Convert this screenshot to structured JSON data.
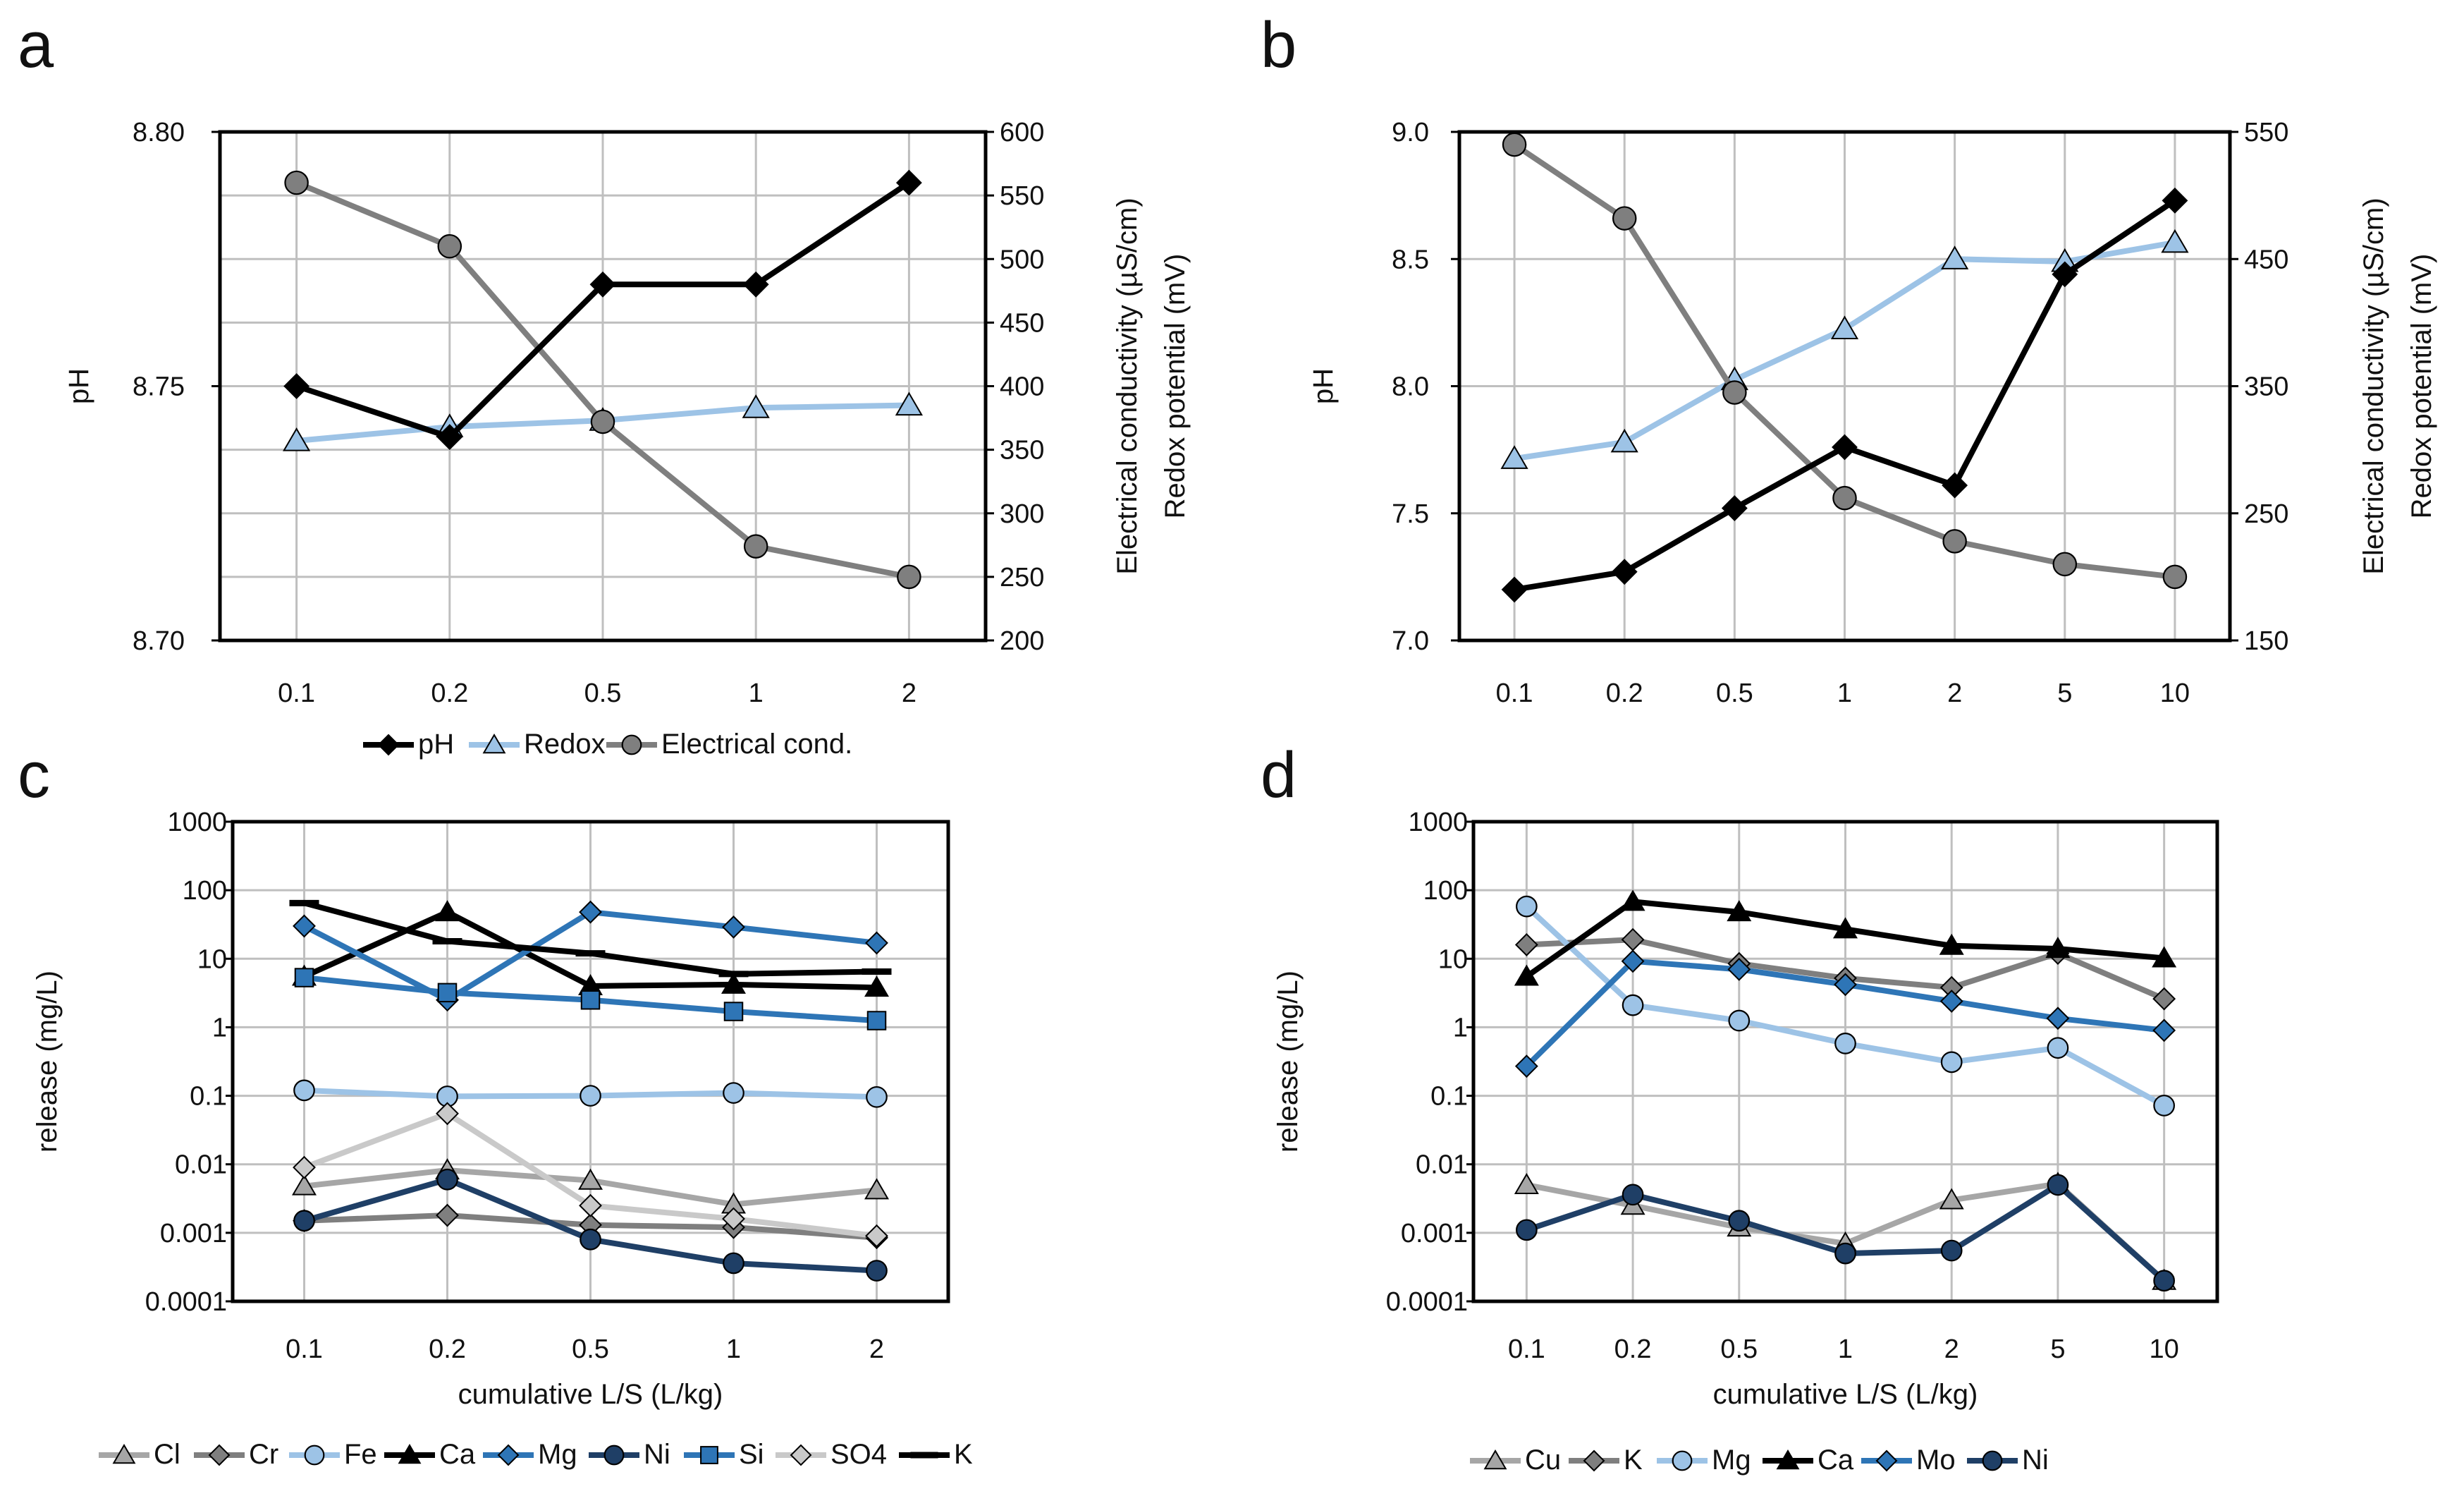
{
  "figure": {
    "panel_labels": [
      "a",
      "b",
      "c",
      "d"
    ]
  },
  "chart_data": [
    {
      "id": "a",
      "type": "line",
      "categories": [
        "0.1",
        "0.2",
        "0.5",
        "1",
        "2"
      ],
      "y_left": {
        "label": "pH",
        "range": [
          8.7,
          8.8
        ],
        "ticks": [
          "8.70",
          "8.75",
          "8.80"
        ]
      },
      "y_right": {
        "label_line1": "Electrical conductivity (µS/cm)",
        "label_line2": "Redox potential (mV)",
        "range": [
          200,
          600
        ],
        "ticks": [
          "200",
          "250",
          "300",
          "350",
          "400",
          "450",
          "500",
          "550",
          "600"
        ]
      },
      "xlabel": "",
      "series": [
        {
          "name": "pH",
          "axis": "left",
          "marker": "diamond",
          "color": "#000000",
          "values": [
            8.75,
            8.74,
            8.77,
            8.77,
            8.79
          ]
        },
        {
          "name": "Redox",
          "axis": "right",
          "marker": "triangle",
          "color": "#9dc3e6",
          "values": [
            357,
            368,
            373,
            383,
            385
          ]
        },
        {
          "name": "Electrical cond.",
          "axis": "right",
          "marker": "circle",
          "color": "#7f7f7f",
          "values": [
            560,
            510,
            372,
            274,
            250
          ]
        }
      ],
      "legend": [
        "pH",
        "Redox",
        "Electrical cond."
      ]
    },
    {
      "id": "b",
      "type": "line",
      "categories": [
        "0.1",
        "0.2",
        "0.5",
        "1",
        "2",
        "5",
        "10"
      ],
      "y_left": {
        "label": "pH",
        "range": [
          7.0,
          9.0
        ],
        "ticks": [
          "7.0",
          "7.5",
          "8.0",
          "8.5",
          "9.0"
        ]
      },
      "y_right": {
        "label_line1": "Electrical conductivity (µS/cm)",
        "label_line2": "Redox potential (mV)",
        "range": [
          150,
          550
        ],
        "ticks": [
          "150",
          "250",
          "350",
          "450",
          "550"
        ]
      },
      "xlabel": "",
      "series": [
        {
          "name": "pH",
          "axis": "left",
          "marker": "diamond",
          "color": "#000000",
          "values": [
            7.2,
            7.27,
            7.52,
            7.76,
            7.61,
            8.44,
            8.73
          ]
        },
        {
          "name": "Redox",
          "axis": "right",
          "marker": "triangle",
          "color": "#9dc3e6",
          "values": [
            293,
            306,
            355,
            395,
            450,
            448,
            463
          ]
        },
        {
          "name": "Electrical cond.",
          "axis": "right",
          "marker": "circle",
          "color": "#7f7f7f",
          "values": [
            540,
            482,
            345,
            262,
            228,
            210,
            200
          ]
        }
      ]
    },
    {
      "id": "c",
      "type": "line",
      "scale": "log",
      "categories": [
        "0.1",
        "0.2",
        "0.5",
        "1",
        "2"
      ],
      "ylabel": "release (mg/L)",
      "xlabel": "cumulative L/S (L/kg)",
      "ylim": [
        0.0001,
        1000
      ],
      "yticks": [
        "0.0001",
        "0.001",
        "0.01",
        "0.1",
        "1",
        "10",
        "100",
        "1000"
      ],
      "series": [
        {
          "name": "Cl",
          "marker": "triangle",
          "color": "#a6a6a6",
          "values": [
            0.0048,
            0.0082,
            0.0058,
            0.0026,
            0.0042
          ]
        },
        {
          "name": "Cr",
          "marker": "diamond",
          "color": "#7f7f7f",
          "values": [
            0.0015,
            0.0018,
            0.0013,
            0.0012,
            0.00085
          ]
        },
        {
          "name": "Fe",
          "marker": "circle",
          "color": "#9dc3e6",
          "values": [
            0.12,
            0.098,
            0.1,
            0.11,
            0.096
          ]
        },
        {
          "name": "Ca",
          "marker": "triangle",
          "color": "#000000",
          "values": [
            5.5,
            48,
            4.0,
            4.2,
            3.8
          ]
        },
        {
          "name": "Mg",
          "marker": "diamond",
          "color": "#2e75b6",
          "values": [
            30,
            2.5,
            48,
            29,
            17
          ]
        },
        {
          "name": "Ni",
          "marker": "circle",
          "color": "#1f3f66",
          "values": [
            0.0015,
            0.006,
            0.0008,
            0.00036,
            0.00028
          ]
        },
        {
          "name": "Si",
          "marker": "square",
          "color": "#2e75b6",
          "values": [
            5.3,
            3.2,
            2.5,
            1.7,
            1.25
          ]
        },
        {
          "name": "SO4",
          "marker": "diamond",
          "color": "#c9c9c9",
          "values": [
            0.009,
            0.055,
            0.0025,
            0.0016,
            0.0009
          ]
        },
        {
          "name": "K",
          "marker": "dash",
          "color": "#000000",
          "values": [
            65,
            18,
            12,
            6,
            6.5
          ]
        }
      ],
      "legend": [
        "Cl",
        "Cr",
        "Fe",
        "Ca",
        "Mg",
        "Ni",
        "Si",
        "SO4",
        "K"
      ]
    },
    {
      "id": "d",
      "type": "line",
      "scale": "log",
      "categories": [
        "0.1",
        "0.2",
        "0.5",
        "1",
        "2",
        "5",
        "10"
      ],
      "ylabel": "release (mg/L)",
      "xlabel": "cumulative L/S (L/kg)",
      "ylim": [
        0.0001,
        1000
      ],
      "yticks": [
        "0.0001",
        "0.001",
        "0.01",
        "0.1",
        "1",
        "10",
        "100",
        "1000"
      ],
      "series": [
        {
          "name": "Cu",
          "marker": "triangle",
          "color": "#a6a6a6",
          "values": [
            0.005,
            0.0025,
            0.0012,
            0.0007,
            0.003,
            0.0052,
            0.0002
          ]
        },
        {
          "name": "K",
          "marker": "diamond",
          "color": "#7f7f7f",
          "values": [
            16,
            19,
            8.5,
            5.2,
            3.8,
            12,
            2.6
          ]
        },
        {
          "name": "Mg",
          "marker": "circle",
          "color": "#9dc3e6",
          "values": [
            58,
            2.1,
            1.25,
            0.58,
            0.31,
            0.5,
            0.072
          ]
        },
        {
          "name": "Ca",
          "marker": "triangle",
          "color": "#000000",
          "values": [
            5.5,
            68,
            48,
            27,
            15.5,
            14,
            10.2
          ]
        },
        {
          "name": "Mo",
          "marker": "diamond",
          "color": "#2e75b6",
          "values": [
            0.27,
            9.2,
            7.0,
            4.2,
            2.4,
            1.35,
            0.9
          ]
        },
        {
          "name": "Ni",
          "marker": "circle",
          "color": "#1f3f66",
          "values": [
            0.0011,
            0.0036,
            0.0015,
            0.0005,
            0.00055,
            0.005,
            0.0002
          ]
        }
      ],
      "legend": [
        "Cu",
        "K",
        "Mg",
        "Ca",
        "Mo",
        "Ni"
      ]
    }
  ]
}
